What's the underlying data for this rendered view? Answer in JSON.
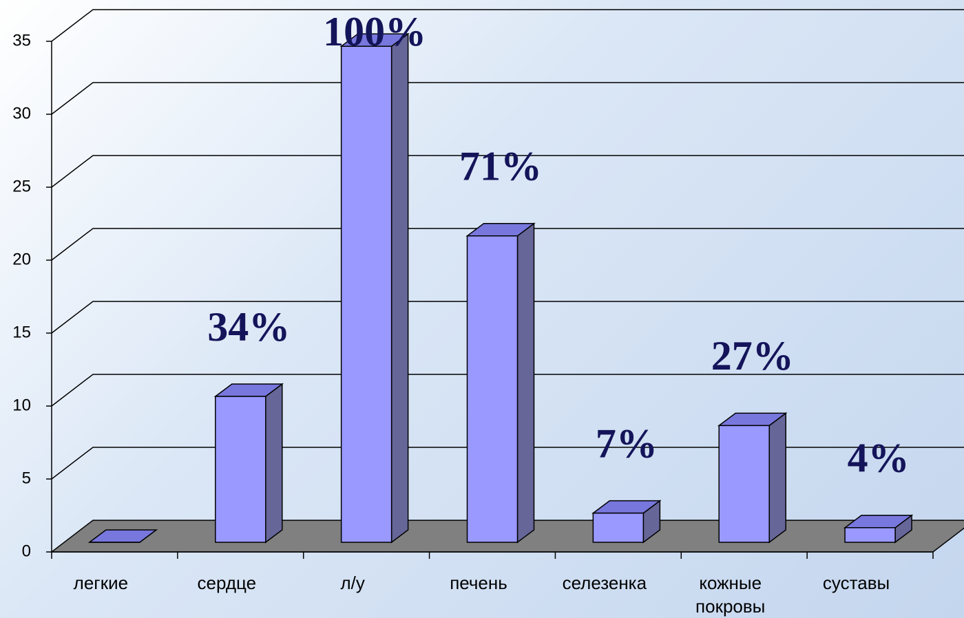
{
  "chart_data": {
    "type": "bar3d",
    "categories": [
      "легкие",
      "сердце",
      "л/у",
      "печень",
      "селезенка",
      "кожные покровы",
      "суставы"
    ],
    "values": [
      0,
      10,
      34,
      21,
      2,
      8,
      1
    ],
    "annotations": [
      null,
      "34%",
      "100%",
      "71%",
      "7%",
      "27%",
      "4%"
    ],
    "color": "#9999ff",
    "side_color": "#666699",
    "floor_color": "#808080",
    "ylim": [
      0,
      35
    ],
    "yticks": [
      0,
      5,
      10,
      15,
      20,
      25,
      30,
      35
    ],
    "grid": true
  }
}
